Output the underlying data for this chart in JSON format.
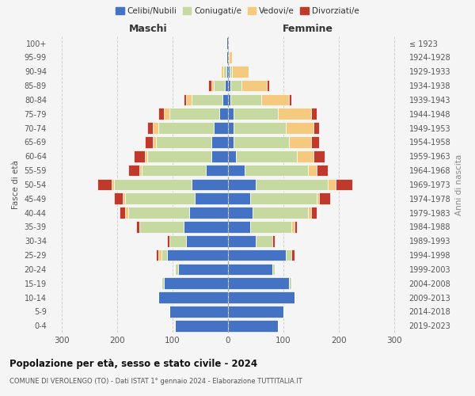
{
  "age_groups": [
    "0-4",
    "5-9",
    "10-14",
    "15-19",
    "20-24",
    "25-29",
    "30-34",
    "35-39",
    "40-44",
    "45-49",
    "50-54",
    "55-59",
    "60-64",
    "65-69",
    "70-74",
    "75-79",
    "80-84",
    "85-89",
    "90-94",
    "95-99",
    "100+"
  ],
  "birth_years": [
    "2019-2023",
    "2014-2018",
    "2009-2013",
    "2004-2008",
    "1999-2003",
    "1994-1998",
    "1989-1993",
    "1984-1988",
    "1979-1983",
    "1974-1978",
    "1969-1973",
    "1964-1968",
    "1959-1963",
    "1954-1958",
    "1949-1953",
    "1944-1948",
    "1939-1943",
    "1934-1938",
    "1929-1933",
    "1924-1928",
    "≤ 1923"
  ],
  "male": {
    "single": [
      95,
      105,
      125,
      115,
      90,
      110,
      75,
      80,
      70,
      60,
      65,
      40,
      30,
      30,
      25,
      15,
      10,
      5,
      3,
      2,
      2
    ],
    "married": [
      0,
      0,
      0,
      5,
      5,
      10,
      30,
      80,
      110,
      125,
      140,
      115,
      115,
      100,
      100,
      90,
      55,
      20,
      5,
      0,
      0
    ],
    "widowed": [
      0,
      0,
      0,
      0,
      0,
      5,
      0,
      0,
      5,
      5,
      5,
      5,
      5,
      5,
      10,
      10,
      10,
      5,
      5,
      0,
      0
    ],
    "divorced": [
      0,
      0,
      0,
      0,
      0,
      5,
      5,
      5,
      10,
      15,
      25,
      20,
      20,
      15,
      10,
      10,
      5,
      5,
      0,
      0,
      0
    ]
  },
  "female": {
    "single": [
      90,
      100,
      120,
      110,
      80,
      105,
      50,
      40,
      45,
      40,
      50,
      30,
      15,
      10,
      10,
      10,
      5,
      5,
      3,
      2,
      2
    ],
    "married": [
      0,
      0,
      0,
      5,
      5,
      10,
      30,
      75,
      100,
      120,
      130,
      115,
      110,
      100,
      95,
      80,
      55,
      20,
      5,
      0,
      0
    ],
    "widowed": [
      0,
      0,
      0,
      0,
      0,
      0,
      0,
      5,
      5,
      5,
      15,
      15,
      30,
      40,
      50,
      60,
      50,
      45,
      30,
      5,
      0
    ],
    "divorced": [
      0,
      0,
      0,
      0,
      0,
      5,
      5,
      5,
      10,
      20,
      30,
      20,
      20,
      15,
      10,
      10,
      5,
      5,
      0,
      0,
      0
    ]
  },
  "colors": {
    "single": "#4472c4",
    "married": "#c5d9a0",
    "widowed": "#f5c97e",
    "divorced": "#c0392b"
  },
  "legend_labels": [
    "Celibi/Nubili",
    "Coniugati/e",
    "Vedovi/e",
    "Divorziati/e"
  ],
  "title_main": "Popolazione per età, sesso e stato civile - 2024",
  "title_sub": "COMUNE DI VEROLENGO (TO) - Dati ISTAT 1° gennaio 2024 - Elaborazione TUTTITALIA.IT",
  "xlabel_left": "Maschi",
  "xlabel_right": "Femmine",
  "ylabel_left": "Fasce di età",
  "ylabel_right": "Anni di nascita",
  "xlim": 320,
  "bg_color": "#f5f5f5",
  "grid_color": "#cccccc",
  "bar_edge_color": "#ffffff"
}
